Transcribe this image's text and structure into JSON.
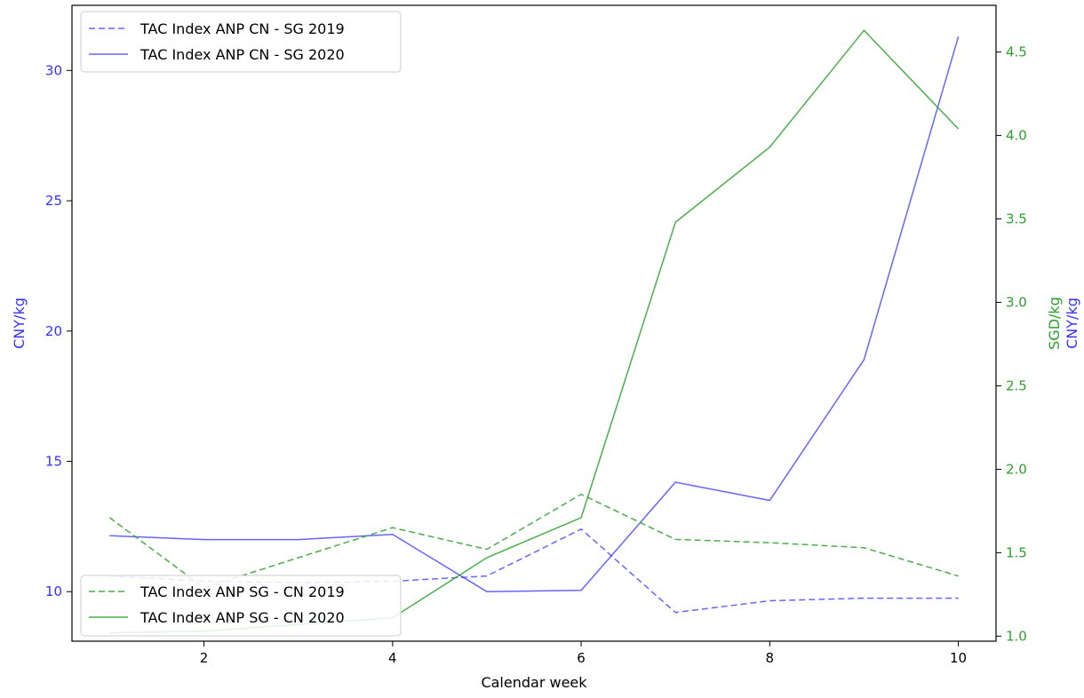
{
  "chart_data": {
    "type": "line",
    "xlabel": "Calendar week",
    "ylabel_left": "CNY/kg",
    "ylabel_right_lines": [
      "SGD/kg",
      "CNY/kg"
    ],
    "x_ticks": [
      2,
      4,
      6,
      8,
      10
    ],
    "y_left_ticks": [
      10,
      15,
      20,
      25,
      30
    ],
    "y_right_ticks": [
      "1.0",
      "1.5",
      "2.0",
      "2.5",
      "3.0",
      "3.5",
      "4.0",
      "4.5"
    ],
    "xlim": [
      0.6,
      10.4
    ],
    "ylim_left": [
      8.1,
      32.5
    ],
    "ylim_right": [
      0.97,
      4.78
    ],
    "colors": {
      "left": "#3333ff",
      "right": "#2ca02c",
      "axis": "#000000"
    },
    "series": [
      {
        "name": "TAC Index ANP CN - SG 2019",
        "axis": "left",
        "style": "dashed",
        "x": [
          1,
          2,
          3,
          4,
          5,
          6,
          7,
          8,
          9,
          10
        ],
        "values": [
          10.6,
          10.4,
          10.35,
          10.4,
          10.6,
          12.4,
          9.2,
          9.65,
          9.75,
          9.75
        ]
      },
      {
        "name": "TAC Index ANP CN - SG 2020",
        "axis": "left",
        "style": "solid",
        "x": [
          1,
          2,
          3,
          4,
          5,
          6,
          7,
          8,
          9,
          10
        ],
        "values": [
          12.15,
          12.0,
          12.0,
          12.2,
          10.0,
          10.05,
          14.2,
          13.5,
          18.9,
          31.3
        ]
      },
      {
        "name": "TAC Index ANP SG - CN 2019",
        "axis": "right",
        "style": "dashed",
        "x": [
          1,
          2,
          3,
          4,
          5,
          6,
          7,
          8,
          9,
          10
        ],
        "values": [
          1.71,
          1.29,
          1.47,
          1.65,
          1.52,
          1.85,
          1.58,
          1.56,
          1.53,
          1.36
        ]
      },
      {
        "name": "TAC Index ANP SG - CN 2020",
        "axis": "right",
        "style": "solid",
        "x": [
          1,
          2,
          3,
          4,
          5,
          6,
          7,
          8,
          9,
          10
        ],
        "values": [
          1.02,
          1.03,
          1.07,
          1.11,
          1.47,
          1.71,
          3.48,
          3.93,
          4.63,
          4.04
        ]
      }
    ],
    "legends": [
      {
        "placement": "upper-left",
        "series_index": [
          0,
          1
        ]
      },
      {
        "placement": "lower-left",
        "series_index": [
          2,
          3
        ]
      }
    ]
  }
}
